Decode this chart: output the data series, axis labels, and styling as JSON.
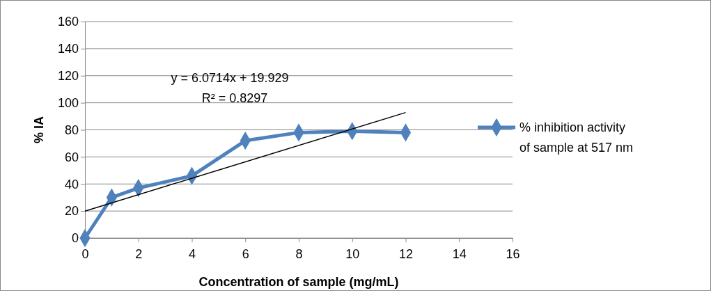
{
  "chart_data": {
    "type": "line",
    "xlabel": "Concentration of sample (mg/mL)",
    "ylabel": "% IA",
    "annotations": [
      "y = 6.0714x + 19.929",
      "R² = 0.8297"
    ],
    "x": [
      0,
      1,
      2,
      4,
      6,
      8,
      10,
      12
    ],
    "series": [
      {
        "name": "% inhibition activity of sample at 517 nm",
        "color": "#4f81bd",
        "marker": "diamond",
        "values": [
          0,
          30,
          37,
          46,
          72,
          78,
          79,
          78
        ]
      },
      {
        "type": "line",
        "color": "#000000",
        "marker": "none",
        "x": [
          0,
          12
        ],
        "values": [
          19.9,
          92.8
        ]
      }
    ],
    "xlim": [
      0,
      16
    ],
    "xticks": [
      0,
      2,
      4,
      6,
      8,
      10,
      12,
      14,
      16
    ],
    "ylim": [
      0,
      160
    ],
    "yticks": [
      0,
      20,
      40,
      60,
      80,
      100,
      120,
      140,
      160
    ],
    "grid": "y",
    "legend": "right"
  }
}
